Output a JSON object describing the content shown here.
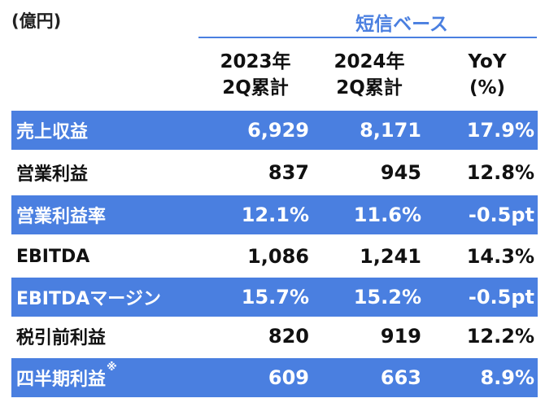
{
  "header": {
    "unit_label": "(億円)",
    "basis_label": "短信ベース",
    "columns": [
      {
        "line1": "2023年",
        "line2": "2Q累計"
      },
      {
        "line1": "2024年",
        "line2": "2Q累計"
      },
      {
        "line1": "YoY",
        "line2": "(%)"
      }
    ]
  },
  "colors": {
    "accent": "#4a7fe0",
    "row_text_on_blue": "#ffffff",
    "row_text": "#111111"
  },
  "rows": [
    {
      "label": "売上収益",
      "note": "",
      "v2023": "6,929",
      "v2024": "8,171",
      "yoy": "17.9%"
    },
    {
      "label": "営業利益",
      "note": "",
      "v2023": "837",
      "v2024": "945",
      "yoy": "12.8%"
    },
    {
      "label": "営業利益率",
      "note": "",
      "v2023": "12.1%",
      "v2024": "11.6%",
      "yoy": "-0.5pt"
    },
    {
      "label": "EBITDA",
      "note": "",
      "v2023": "1,086",
      "v2024": "1,241",
      "yoy": "14.3%"
    },
    {
      "label": "EBITDAマージン",
      "note": "",
      "v2023": "15.7%",
      "v2024": "15.2%",
      "yoy": "-0.5pt"
    },
    {
      "label": "税引前利益",
      "note": "",
      "v2023": "820",
      "v2024": "919",
      "yoy": "12.2%"
    },
    {
      "label": "四半期利益",
      "note": "※",
      "v2023": "609",
      "v2024": "663",
      "yoy": "8.9%"
    }
  ]
}
